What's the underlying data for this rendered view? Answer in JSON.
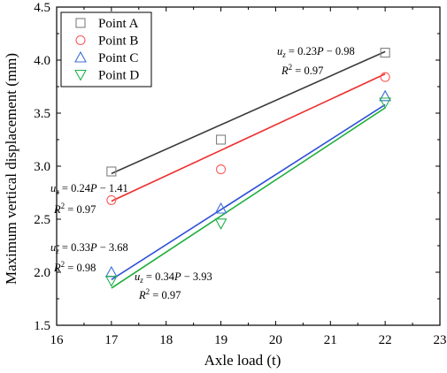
{
  "chart_data": {
    "type": "scatter",
    "xlabel": "Axle load (t)",
    "ylabel": "Maximum vertical displacement (mm)",
    "xlim": [
      16,
      23
    ],
    "ylim": [
      1.5,
      4.5
    ],
    "xticks": [
      "16",
      "17",
      "18",
      "19",
      "20",
      "21",
      "22",
      "23"
    ],
    "yticks": [
      "1.5",
      "2.0",
      "2.5",
      "3.0",
      "3.5",
      "4.0",
      "4.5"
    ],
    "x": [
      17,
      19,
      22
    ],
    "series": [
      {
        "name": "Point A",
        "marker": "square",
        "color": "#808080",
        "values": [
          2.95,
          3.25,
          4.07
        ],
        "fit": {
          "slope": 0.23,
          "intercept": -0.98,
          "line_color": "#3a3a3a"
        }
      },
      {
        "name": "Point B",
        "marker": "circle",
        "color": "#ff5a5a",
        "values": [
          2.68,
          2.97,
          3.84
        ],
        "fit": {
          "slope": 0.24,
          "intercept": -1.41,
          "line_color": "#ee3030"
        }
      },
      {
        "name": "Point C",
        "marker": "triangle-up",
        "color": "#3b6fd6",
        "values": [
          2.0,
          2.6,
          3.66
        ],
        "fit": {
          "slope": 0.33,
          "intercept": -3.68,
          "line_color": "#2f4fd8"
        }
      },
      {
        "name": "Point D",
        "marker": "triangle-down",
        "color": "#22b04a",
        "values": [
          1.92,
          2.46,
          3.6
        ],
        "fit": {
          "slope": 0.34,
          "intercept": -3.93,
          "line_color": "#1fae3c"
        }
      }
    ],
    "equations": [
      {
        "lhs": "u",
        "sub": "z",
        "rhs": " = 0.23",
        "var": "P",
        "tail": " − 0.98",
        "r2": "R",
        "r2sup": "2",
        "r2val": " = 0.97"
      },
      {
        "lhs": "u",
        "sub": "z",
        "rhs": " = 0.24",
        "var": "P",
        "tail": " − 1.41",
        "r2": "R",
        "r2sup": "2",
        "r2val": " = 0.97"
      },
      {
        "lhs": "u",
        "sub": "z",
        "rhs": " = 0.33",
        "var": "P",
        "tail": " − 3.68",
        "r2": "R",
        "r2sup": "2",
        "r2val": " = 0.98"
      },
      {
        "lhs": "u",
        "sub": "z",
        "rhs": " = 0.34",
        "var": "P",
        "tail": " − 3.93",
        "r2": "R",
        "r2sup": "2",
        "r2val": " = 0.97"
      }
    ],
    "legend_position": "top-left",
    "grid": false
  }
}
